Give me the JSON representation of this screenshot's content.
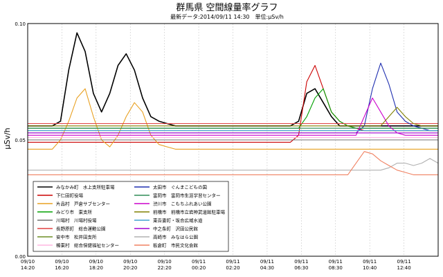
{
  "chart_data": {
    "type": "line",
    "title": "群馬県 空間線量率グラフ",
    "subtitle": "最新データ:2014/09/11 14:30　単位:μSv/h",
    "ylabel": "μSv/h",
    "xlabel": "",
    "ylim": [
      0,
      0.1
    ],
    "y_ticks": [
      "0.10",
      "0.05",
      "0.00"
    ],
    "x_ticks": [
      {
        "date": "09/10",
        "time": "14:20"
      },
      {
        "date": "09/10",
        "time": "16:20"
      },
      {
        "date": "09/10",
        "time": "18:20"
      },
      {
        "date": "09/10",
        "time": "20:20"
      },
      {
        "date": "09/10",
        "time": "22:20"
      },
      {
        "date": "09/11",
        "time": "00:20"
      },
      {
        "date": "09/11",
        "time": "02:20"
      },
      {
        "date": "09/11",
        "time": "04:30"
      },
      {
        "date": "09/11",
        "time": "06:30"
      },
      {
        "date": "09/11",
        "time": "08:30"
      },
      {
        "date": "09/11",
        "time": "10:40"
      },
      {
        "date": "09/11",
        "time": "12:40"
      }
    ],
    "grid": true,
    "legend_position": "bottom-left",
    "series": [
      {
        "name": "みなかみ町　水上支所駐車場",
        "color": "#000000",
        "values": [
          0.056,
          0.056,
          0.056,
          0.056,
          0.058,
          0.08,
          0.096,
          0.088,
          0.07,
          0.062,
          0.07,
          0.082,
          0.087,
          0.08,
          0.068,
          0.06,
          0.058,
          0.057,
          0.056,
          0.056,
          0.056,
          0.056,
          0.056,
          0.056,
          0.056,
          0.056,
          0.056,
          0.056,
          0.056,
          0.056,
          0.056,
          0.056,
          0.056,
          0.058,
          0.07,
          0.072,
          0.066,
          0.06,
          0.056,
          0.056,
          0.056,
          0.056,
          0.056,
          0.056,
          0.056,
          0.056,
          0.056,
          0.056,
          0.056,
          0.056,
          0.056
        ]
      },
      {
        "name": "下仁田町役場",
        "color": "#cc0000",
        "values": [
          0.049,
          0.049,
          0.049,
          0.049,
          0.049,
          0.049,
          0.049,
          0.049,
          0.049,
          0.049,
          0.049,
          0.049,
          0.049,
          0.049,
          0.049,
          0.049,
          0.049,
          0.049,
          0.049,
          0.049,
          0.049,
          0.049,
          0.049,
          0.049,
          0.049,
          0.049,
          0.049,
          0.049,
          0.049,
          0.049,
          0.049,
          0.049,
          0.049,
          0.052,
          0.075,
          0.082,
          0.072,
          0.062,
          0.058,
          0.056,
          0.055,
          0.054,
          0.054,
          0.054,
          0.054,
          0.054,
          0.054,
          0.054,
          0.054,
          0.054,
          0.054
        ]
      },
      {
        "name": "片品村　戸倉サブセンター",
        "color": "#e8a020",
        "values": [
          0.046,
          0.046,
          0.046,
          0.046,
          0.05,
          0.058,
          0.068,
          0.072,
          0.06,
          0.05,
          0.047,
          0.052,
          0.06,
          0.066,
          0.062,
          0.052,
          0.048,
          0.047,
          0.046,
          0.046,
          0.046,
          0.046,
          0.046,
          0.046,
          0.046,
          0.046,
          0.046,
          0.046,
          0.046,
          0.046,
          0.046,
          0.046,
          0.046,
          0.046,
          0.046,
          0.046,
          0.046,
          0.046,
          0.046,
          0.046,
          0.046,
          0.046,
          0.046,
          0.046,
          0.046,
          0.046,
          0.046,
          0.046,
          0.046,
          0.046,
          0.046
        ]
      },
      {
        "name": "みどり市　東支所",
        "color": "#00a000",
        "values": [
          0.055,
          0.055,
          0.055,
          0.055,
          0.055,
          0.055,
          0.055,
          0.055,
          0.055,
          0.055,
          0.055,
          0.055,
          0.055,
          0.055,
          0.055,
          0.055,
          0.055,
          0.055,
          0.055,
          0.055,
          0.055,
          0.055,
          0.055,
          0.055,
          0.055,
          0.055,
          0.055,
          0.055,
          0.055,
          0.055,
          0.055,
          0.055,
          0.055,
          0.055,
          0.06,
          0.068,
          0.072,
          0.062,
          0.058,
          0.056,
          0.055,
          0.055,
          0.055,
          0.055,
          0.055,
          0.055,
          0.055,
          0.055,
          0.055,
          0.055,
          0.055
        ]
      },
      {
        "name": "川場村　川場村役場",
        "color": "#707070",
        "values": [
          0.05,
          0.05,
          0.05,
          0.05,
          0.05,
          0.05,
          0.05,
          0.05,
          0.05,
          0.05,
          0.05,
          0.05,
          0.05,
          0.05,
          0.05,
          0.05,
          0.05,
          0.05,
          0.05,
          0.05,
          0.05,
          0.05,
          0.05,
          0.05,
          0.05,
          0.05,
          0.05,
          0.05,
          0.05,
          0.05,
          0.05,
          0.05,
          0.05,
          0.05,
          0.05,
          0.05,
          0.05,
          0.05,
          0.05,
          0.05,
          0.05,
          0.05,
          0.05,
          0.05,
          0.05,
          0.05,
          0.05,
          0.05,
          0.05,
          0.05,
          0.05
        ]
      },
      {
        "name": "長野原町　総合運動公園",
        "color": "#e04040",
        "values": [
          0.057,
          0.057,
          0.057,
          0.057,
          0.057,
          0.057,
          0.057,
          0.057,
          0.057,
          0.057,
          0.057,
          0.057,
          0.057,
          0.057,
          0.057,
          0.057,
          0.057,
          0.057,
          0.057,
          0.057,
          0.057,
          0.057,
          0.057,
          0.057,
          0.057,
          0.057,
          0.057,
          0.057,
          0.057,
          0.057,
          0.057,
          0.057,
          0.057,
          0.057,
          0.057,
          0.057,
          0.057,
          0.057,
          0.057,
          0.057,
          0.057,
          0.057,
          0.057,
          0.057,
          0.057,
          0.057,
          0.057,
          0.057,
          0.057,
          0.057,
          0.057
        ]
      },
      {
        "name": "安中市　松井田支所",
        "color": "#6b8e23",
        "values": [
          0.054,
          0.054,
          0.054,
          0.054,
          0.054,
          0.054,
          0.054,
          0.054,
          0.054,
          0.054,
          0.054,
          0.054,
          0.054,
          0.054,
          0.054,
          0.054,
          0.054,
          0.054,
          0.054,
          0.054,
          0.054,
          0.054,
          0.054,
          0.054,
          0.054,
          0.054,
          0.054,
          0.054,
          0.054,
          0.054,
          0.054,
          0.054,
          0.054,
          0.054,
          0.054,
          0.054,
          0.054,
          0.054,
          0.054,
          0.054,
          0.054,
          0.054,
          0.054,
          0.054,
          0.054,
          0.054,
          0.054,
          0.054,
          0.054,
          0.054,
          0.054
        ]
      },
      {
        "name": "榛東村　総合保健福祉センター",
        "color": "#ffb6e0",
        "values": [
          0.051,
          0.051,
          0.051,
          0.051,
          0.051,
          0.051,
          0.051,
          0.051,
          0.051,
          0.051,
          0.051,
          0.051,
          0.051,
          0.051,
          0.051,
          0.051,
          0.051,
          0.051,
          0.051,
          0.051,
          0.051,
          0.051,
          0.051,
          0.051,
          0.051,
          0.051,
          0.051,
          0.051,
          0.051,
          0.051,
          0.051,
          0.051,
          0.051,
          0.051,
          0.051,
          0.051,
          0.051,
          0.051,
          0.051,
          0.051,
          0.051,
          0.051,
          0.051,
          0.051,
          0.051,
          0.051,
          0.051,
          0.051,
          0.051,
          0.051,
          0.051
        ]
      },
      {
        "name": "太田市　ぐんまこどもの国",
        "color": "#1f2fb0",
        "values": [
          0.053,
          0.053,
          0.053,
          0.053,
          0.053,
          0.053,
          0.053,
          0.053,
          0.053,
          0.053,
          0.053,
          0.053,
          0.053,
          0.053,
          0.053,
          0.053,
          0.053,
          0.053,
          0.053,
          0.053,
          0.053,
          0.053,
          0.053,
          0.053,
          0.053,
          0.053,
          0.053,
          0.053,
          0.053,
          0.053,
          0.053,
          0.053,
          0.053,
          0.053,
          0.053,
          0.053,
          0.053,
          0.053,
          0.053,
          0.053,
          0.053,
          0.056,
          0.072,
          0.083,
          0.074,
          0.062,
          0.058,
          0.056,
          0.055,
          0.054,
          0.054
        ]
      },
      {
        "name": "富岡市　富岡市生涯学習センター",
        "color": "#2e8b57",
        "values": [
          0.055,
          0.055,
          0.055,
          0.055,
          0.055,
          0.055,
          0.055,
          0.055,
          0.055,
          0.055,
          0.055,
          0.055,
          0.055,
          0.055,
          0.055,
          0.055,
          0.055,
          0.055,
          0.055,
          0.055,
          0.055,
          0.055,
          0.055,
          0.055,
          0.055,
          0.055,
          0.055,
          0.055,
          0.055,
          0.055,
          0.055,
          0.055,
          0.055,
          0.055,
          0.055,
          0.055,
          0.055,
          0.055,
          0.055,
          0.055,
          0.055,
          0.055,
          0.055,
          0.055,
          0.055,
          0.055,
          0.055,
          0.055,
          0.055,
          0.055,
          0.055
        ]
      },
      {
        "name": "渋川市　こもちふれあい公園",
        "color": "#cc00cc",
        "values": [
          0.052,
          0.052,
          0.052,
          0.052,
          0.052,
          0.052,
          0.052,
          0.052,
          0.052,
          0.052,
          0.052,
          0.052,
          0.052,
          0.052,
          0.052,
          0.052,
          0.052,
          0.052,
          0.052,
          0.052,
          0.052,
          0.052,
          0.052,
          0.052,
          0.052,
          0.052,
          0.052,
          0.052,
          0.052,
          0.052,
          0.052,
          0.052,
          0.052,
          0.052,
          0.052,
          0.052,
          0.052,
          0.052,
          0.052,
          0.052,
          0.052,
          0.06,
          0.068,
          0.062,
          0.056,
          0.053,
          0.052,
          0.052,
          0.052,
          0.052,
          0.052
        ]
      },
      {
        "name": "前橋市　前橋市立岩神武道館駐車場",
        "color": "#808000",
        "values": [
          0.056,
          0.056,
          0.056,
          0.056,
          0.056,
          0.056,
          0.056,
          0.056,
          0.056,
          0.056,
          0.056,
          0.056,
          0.056,
          0.056,
          0.056,
          0.056,
          0.056,
          0.056,
          0.056,
          0.056,
          0.056,
          0.056,
          0.056,
          0.056,
          0.056,
          0.056,
          0.056,
          0.056,
          0.056,
          0.056,
          0.056,
          0.056,
          0.056,
          0.056,
          0.056,
          0.056,
          0.056,
          0.056,
          0.056,
          0.056,
          0.056,
          0.056,
          0.056,
          0.056,
          0.06,
          0.064,
          0.06,
          0.057,
          0.056,
          0.056,
          0.056
        ]
      },
      {
        "name": "東吾妻町・坂合広域水道",
        "color": "#40a0d0",
        "values": [
          0.054,
          0.054,
          0.054,
          0.054,
          0.054,
          0.054,
          0.054,
          0.054,
          0.054,
          0.054,
          0.054,
          0.054,
          0.054,
          0.054,
          0.054,
          0.054,
          0.054,
          0.054,
          0.054,
          0.054,
          0.054,
          0.054,
          0.054,
          0.054,
          0.054,
          0.054,
          0.054,
          0.054,
          0.054,
          0.054,
          0.054,
          0.054,
          0.054,
          0.054,
          0.054,
          0.054,
          0.054,
          0.054,
          0.054,
          0.054,
          0.054,
          0.054,
          0.054,
          0.054,
          0.054,
          0.054,
          0.054,
          0.054,
          0.054,
          0.054,
          0.054
        ]
      },
      {
        "name": "中之条町　沢田公民館",
        "color": "#a000d0",
        "values": [
          0.053,
          0.053,
          0.053,
          0.053,
          0.053,
          0.053,
          0.053,
          0.053,
          0.053,
          0.053,
          0.053,
          0.053,
          0.053,
          0.053,
          0.053,
          0.053,
          0.053,
          0.053,
          0.053,
          0.053,
          0.053,
          0.053,
          0.053,
          0.053,
          0.053,
          0.053,
          0.053,
          0.053,
          0.053,
          0.053,
          0.053,
          0.053,
          0.053,
          0.053,
          0.053,
          0.053,
          0.053,
          0.053,
          0.053,
          0.053,
          0.053,
          0.053,
          0.053,
          0.053,
          0.053,
          0.053,
          0.053,
          0.053,
          0.053,
          0.053,
          0.053
        ]
      },
      {
        "name": "高崎市　みなはら公園",
        "color": "#b0b0b0",
        "values": [
          0.037,
          0.037,
          0.037,
          0.037,
          0.037,
          0.037,
          0.037,
          0.037,
          0.037,
          0.037,
          0.037,
          0.037,
          0.037,
          0.037,
          0.037,
          0.037,
          0.037,
          0.037,
          0.037,
          0.037,
          0.037,
          0.037,
          0.037,
          0.037,
          0.037,
          0.037,
          0.037,
          0.037,
          0.037,
          0.037,
          0.037,
          0.037,
          0.037,
          0.037,
          0.037,
          0.037,
          0.037,
          0.037,
          0.037,
          0.037,
          0.037,
          0.037,
          0.037,
          0.037,
          0.038,
          0.04,
          0.04,
          0.039,
          0.04,
          0.042,
          0.04
        ]
      },
      {
        "name": "板倉町　市民文化会館",
        "color": "#f08060",
        "values": [
          0.035,
          0.035,
          0.035,
          0.035,
          0.035,
          0.035,
          0.035,
          0.035,
          0.035,
          0.035,
          0.035,
          0.035,
          0.035,
          0.035,
          0.035,
          0.035,
          0.035,
          0.035,
          0.035,
          0.035,
          0.035,
          0.035,
          0.035,
          0.035,
          0.035,
          0.035,
          0.035,
          0.035,
          0.035,
          0.035,
          0.035,
          0.035,
          0.035,
          0.035,
          0.035,
          0.035,
          0.035,
          0.035,
          0.035,
          0.035,
          0.04,
          0.045,
          0.044,
          0.041,
          0.039,
          0.037,
          0.036,
          0.035,
          0.035,
          0.035,
          0.035
        ]
      }
    ]
  }
}
